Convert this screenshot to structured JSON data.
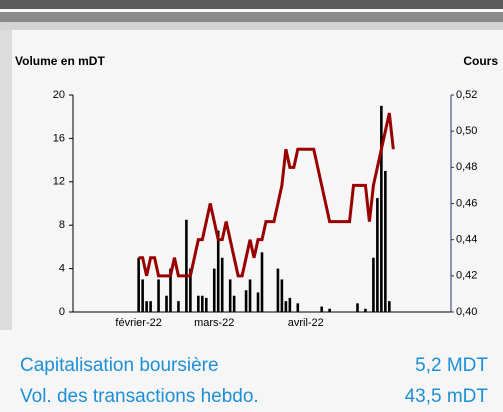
{
  "chart_data": {
    "type": "bar-line",
    "ylabel": "Volume en mDT",
    "y2label": "Cours",
    "categories": [
      null,
      null,
      null,
      null,
      null,
      null,
      null,
      null,
      null,
      null,
      null,
      null,
      null,
      null,
      null,
      null,
      "février-22",
      null,
      null,
      null,
      null,
      null,
      null,
      null,
      null,
      null,
      null,
      null,
      null,
      null,
      null,
      null,
      null,
      null,
      null,
      "mars-22",
      null,
      null,
      null,
      null,
      null,
      null,
      null,
      null,
      null,
      null,
      null,
      null,
      null,
      null,
      null,
      null,
      null,
      null,
      null,
      null,
      null,
      null,
      "avril-22",
      null,
      null,
      null,
      null,
      null,
      null,
      null,
      null,
      null,
      null,
      null,
      null,
      null,
      null,
      null,
      null,
      null,
      null,
      null,
      null,
      null,
      null,
      null,
      null,
      null,
      null,
      null,
      null,
      null,
      null,
      null,
      null,
      null,
      null,
      null,
      null
    ],
    "series": [
      {
        "type": "bar",
        "color": "#000000",
        "values": [
          null,
          null,
          null,
          null,
          null,
          null,
          null,
          null,
          null,
          null,
          null,
          null,
          null,
          null,
          null,
          null,
          5,
          3,
          1,
          1,
          0,
          3,
          0,
          1.5,
          4,
          0,
          1,
          0,
          8.5,
          4,
          0,
          1.5,
          1.5,
          1.3,
          0,
          4,
          7.5,
          5,
          0,
          3,
          1.5,
          0,
          0,
          2,
          3,
          0,
          1.8,
          5.5,
          0,
          0,
          0,
          4,
          3,
          1,
          1.3,
          0,
          0.8,
          0,
          0,
          0,
          0,
          0,
          0.5,
          0,
          0.3,
          0,
          0,
          0,
          0,
          0,
          0,
          0.8,
          0,
          0.3,
          0,
          5,
          10.5,
          19,
          13,
          1,
          0,
          null,
          null,
          null,
          null,
          null,
          null,
          null,
          null,
          null,
          null,
          null,
          null,
          null,
          null
        ]
      },
      {
        "type": "line",
        "axis": "y2",
        "color": "#990000",
        "values": [
          null,
          null,
          null,
          null,
          null,
          null,
          null,
          null,
          null,
          null,
          null,
          null,
          null,
          null,
          null,
          null,
          0.43,
          0.43,
          0.42,
          0.43,
          0.43,
          0.42,
          0.42,
          0.42,
          0.42,
          0.43,
          0.42,
          0.42,
          0.42,
          0.42,
          0.43,
          0.44,
          0.44,
          0.45,
          0.46,
          0.45,
          0.44,
          0.44,
          0.45,
          0.44,
          0.43,
          0.42,
          0.42,
          0.43,
          0.44,
          0.43,
          0.44,
          0.44,
          0.45,
          0.45,
          0.45,
          0.46,
          0.47,
          0.49,
          0.48,
          0.48,
          0.49,
          0.49,
          0.49,
          0.49,
          0.49,
          0.48,
          0.47,
          0.46,
          0.45,
          0.45,
          0.45,
          0.45,
          0.45,
          0.45,
          0.47,
          0.47,
          0.47,
          0.47,
          0.45,
          0.47,
          0.48,
          0.49,
          0.5,
          0.51,
          0.49,
          null,
          null,
          null,
          null,
          null,
          null,
          null,
          null,
          null,
          null,
          null,
          null,
          null,
          null
        ]
      }
    ],
    "ylim": [
      0,
      20
    ],
    "yticks": [
      0,
      4,
      8,
      12,
      16,
      20
    ],
    "y2lim": [
      0.4,
      0.52
    ],
    "y2ticks": [
      {
        "value": 0.4,
        "label": "0,40"
      },
      {
        "value": 0.42,
        "label": "0,42"
      },
      {
        "value": 0.44,
        "label": "0,44"
      },
      {
        "value": 0.46,
        "label": "0,46"
      },
      {
        "value": 0.48,
        "label": "0,48"
      },
      {
        "value": 0.5,
        "label": "0,50"
      },
      {
        "value": 0.52,
        "label": "0,52"
      }
    ]
  },
  "stats": [
    {
      "label": "Capitalisation boursière",
      "value": "5,2 MDT"
    },
    {
      "label": "Vol. des transactions hebdo.",
      "value": "43,5 mDT"
    }
  ]
}
